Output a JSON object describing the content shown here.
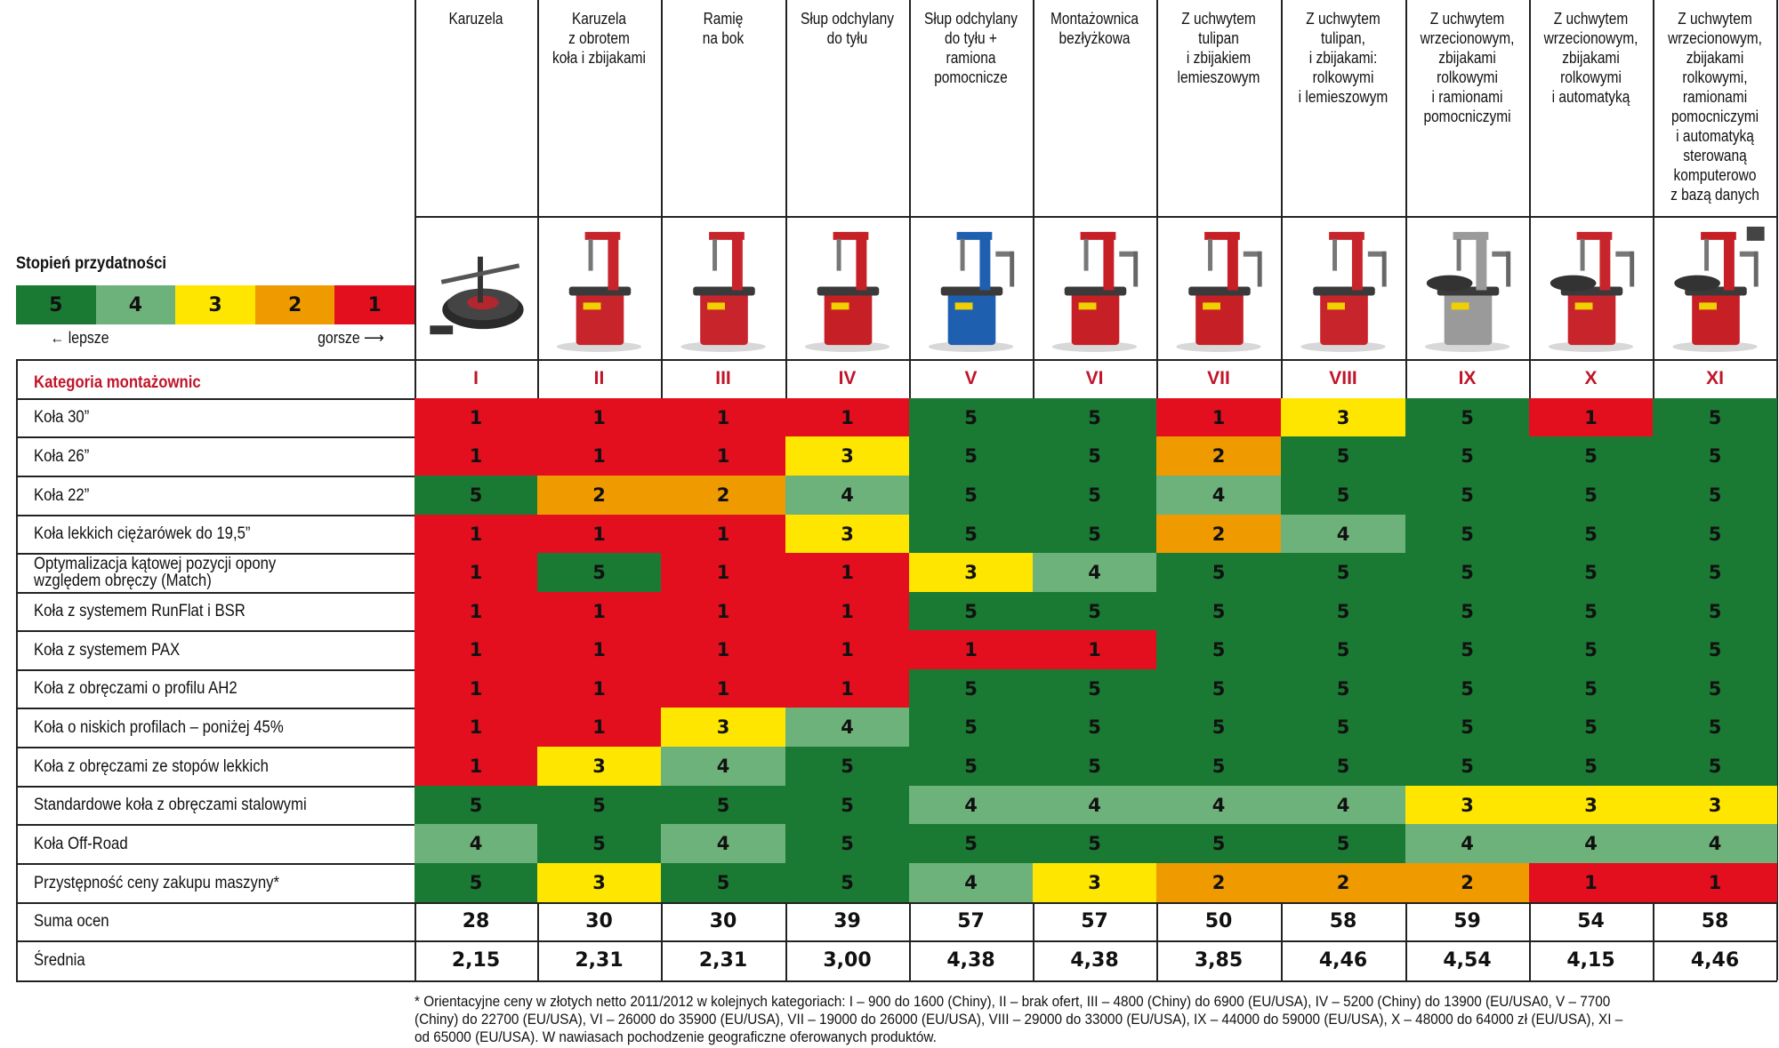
{
  "legend": {
    "title": "Stopień przydatności",
    "scale": [
      {
        "value": "5",
        "color": "#1a7a34"
      },
      {
        "value": "4",
        "color": "#6db27a"
      },
      {
        "value": "3",
        "color": "#ffe600"
      },
      {
        "value": "2",
        "color": "#ef9b00"
      },
      {
        "value": "1",
        "color": "#e30f1f"
      }
    ],
    "better_label": "← lepsze",
    "worse_label": "gorsze ⟶"
  },
  "columns": [
    {
      "header": "Karuzela",
      "machine_icon": "tire-changer-carousel-icon"
    },
    {
      "header": "Karuzela\nz obrotem\nkoła i zbijakami",
      "machine_icon": "tire-changer-red-carousel-icon"
    },
    {
      "header": "Ramię\nna bok",
      "machine_icon": "tire-changer-swing-arm-icon"
    },
    {
      "header": "Słup odchylany\ndo tyłu",
      "machine_icon": "tire-changer-tilt-back-icon"
    },
    {
      "header": "Słup odchylany\ndo tyłu +\nramiona\npomocnicze",
      "machine_icon": "tire-changer-blue-helper-arms-icon"
    },
    {
      "header": "Montażownica\nbezłyżkowa",
      "machine_icon": "tire-changer-leverless-icon"
    },
    {
      "header": "Z uchwytem\ntulipan\ni zbijakiem\nlemieszowym",
      "machine_icon": "tire-changer-tulip-clamp-icon"
    },
    {
      "header": "Z uchwytem\ntulipan,\ni zbijakami:\nrolkowymi\ni lemieszowym",
      "machine_icon": "tire-changer-tulip-roller-icon"
    },
    {
      "header": "Z uchwytem\nwrzecionowym,\nzbijakami\nrolkowymi\ni ramionami\npomocniczymi",
      "machine_icon": "tire-changer-spindle-helper-icon"
    },
    {
      "header": "Z uchwytem\nwrzecionowym,\nzbijakami\nrolkowymi\ni automatyką",
      "machine_icon": "tire-changer-spindle-auto-icon"
    },
    {
      "header": "Z uchwytem\nwrzecionowym,\nzbijakami\nrolkowymi,\nramionami\npomocniczymi\ni automatyką\nsterowaną\nkomputerowo\nz bazą danych",
      "machine_icon": "tire-changer-computer-icon"
    }
  ],
  "category_row": {
    "label": "Kategoria montażownic",
    "values": [
      "I",
      "II",
      "III",
      "IV",
      "V",
      "VI",
      "VII",
      "VIII",
      "IX",
      "X",
      "XI"
    ]
  },
  "chart_data": {
    "type": "table",
    "rows": [
      {
        "label": "Koła 30”",
        "values": [
          1,
          1,
          1,
          1,
          5,
          5,
          1,
          3,
          5,
          1,
          5
        ]
      },
      {
        "label": "Koła 26”",
        "values": [
          1,
          1,
          1,
          3,
          5,
          5,
          2,
          5,
          5,
          5,
          5
        ]
      },
      {
        "label": "Koła 22”",
        "values": [
          5,
          2,
          2,
          4,
          5,
          5,
          4,
          5,
          5,
          5,
          5
        ]
      },
      {
        "label": "Koła lekkich ciężarówek do 19,5”",
        "values": [
          1,
          1,
          1,
          3,
          5,
          5,
          2,
          4,
          5,
          5,
          5
        ]
      },
      {
        "label": "Optymalizacja kątowej pozycji opony\nwzględem obręczy (Match)",
        "values": [
          1,
          5,
          1,
          1,
          3,
          4,
          5,
          5,
          5,
          5,
          5
        ]
      },
      {
        "label": "Koła z systemem RunFlat i BSR",
        "values": [
          1,
          1,
          1,
          1,
          5,
          5,
          5,
          5,
          5,
          5,
          5
        ]
      },
      {
        "label": "Koła z systemem PAX",
        "values": [
          1,
          1,
          1,
          1,
          1,
          1,
          5,
          5,
          5,
          5,
          5
        ]
      },
      {
        "label": "Koła z obręczami o profilu AH2",
        "values": [
          1,
          1,
          1,
          1,
          5,
          5,
          5,
          5,
          5,
          5,
          5
        ]
      },
      {
        "label": "Koła o niskich profilach – poniżej 45%",
        "values": [
          1,
          1,
          3,
          4,
          5,
          5,
          5,
          5,
          5,
          5,
          5
        ]
      },
      {
        "label": "Koła z obręczami ze stopów lekkich",
        "values": [
          1,
          3,
          4,
          5,
          5,
          5,
          5,
          5,
          5,
          5,
          5
        ]
      },
      {
        "label": "Standardowe koła z obręczami stalowymi",
        "values": [
          5,
          5,
          5,
          5,
          4,
          4,
          4,
          4,
          3,
          3,
          3
        ]
      },
      {
        "label": "Koła Off-Road",
        "values": [
          4,
          5,
          4,
          5,
          5,
          5,
          5,
          5,
          4,
          4,
          4
        ]
      },
      {
        "label": "Przystępność ceny zakupu maszyny*",
        "values": [
          5,
          3,
          5,
          5,
          4,
          3,
          2,
          2,
          2,
          1,
          1
        ]
      }
    ],
    "summary": [
      {
        "label": "Suma ocen",
        "values": [
          "28",
          "30",
          "30",
          "39",
          "57",
          "57",
          "50",
          "58",
          "59",
          "54",
          "58"
        ]
      },
      {
        "label": "Średnia",
        "values": [
          "2,15",
          "2,31",
          "2,31",
          "3,00",
          "4,38",
          "4,38",
          "3,85",
          "4,46",
          "4,54",
          "4,15",
          "4,46"
        ]
      }
    ]
  },
  "footnote": "* Orientacyjne ceny w złotych netto 2011/2012 w kolejnych kategoriach: I – 900 do 1600 (Chiny), II – brak ofert, III – 4800 (Chiny) do 6900 (EU/USA), IV – 5200 (Chiny) do 13900 (EU/USA0, V – 7700 (Chiny) do 22700 (EU/USA), VI – 26000 do 35900 (EU/USA), VII – 19000 do 26000 (EU/USA), VIII – 29000 do 33000 (EU/USA), IX – 44000 do 59000 (EU/USA), X – 48000 do 64000 zł (EU/USA), XI – od 65000 (EU/USA). W nawiasach pochodzenie geograficzne oferowanych produktów."
}
